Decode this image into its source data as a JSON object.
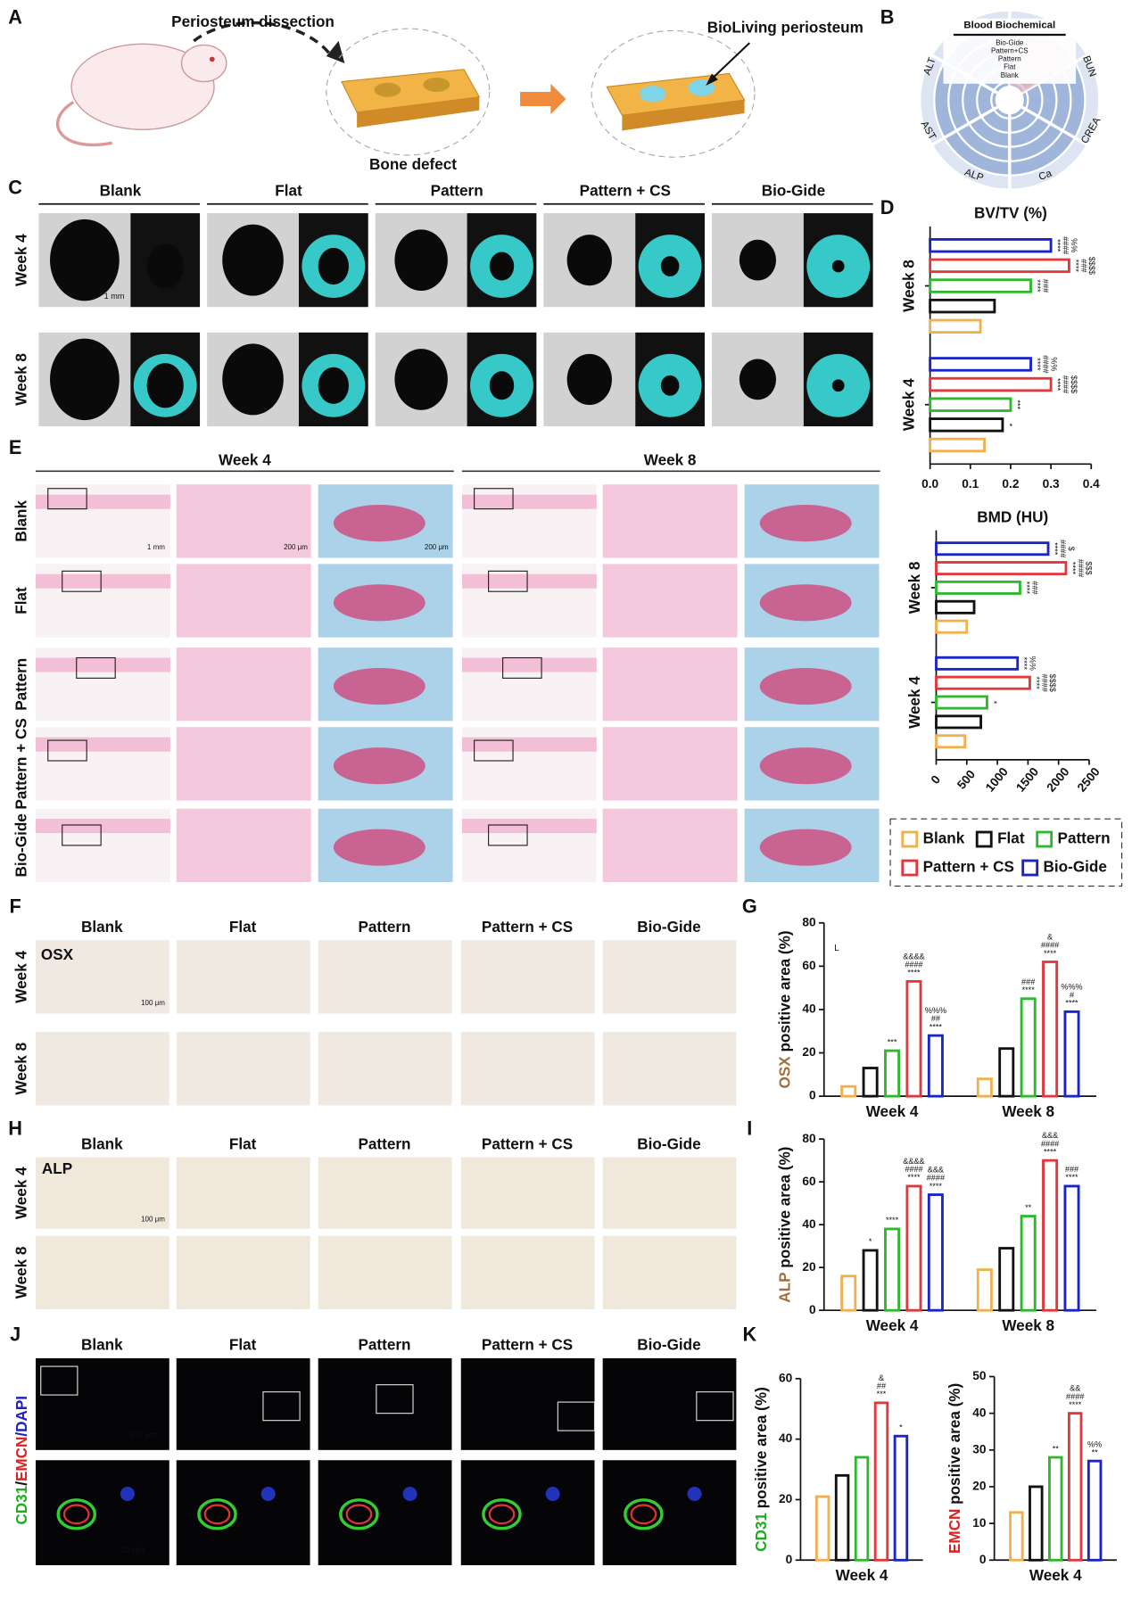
{
  "panels": {
    "letters": [
      "A",
      "B",
      "C",
      "D",
      "E",
      "F",
      "G",
      "H",
      "I",
      "J",
      "K"
    ],
    "A": {
      "step1": "Periosteum dissection",
      "step2": "Bone defect",
      "step3": "BioLiving periosteum"
    },
    "B": {
      "title": "Blood Biochemical",
      "levels": [
        "Bio-Gide",
        "Pattern+CS",
        "Pattern",
        "Flat",
        "Blank"
      ],
      "sectors": [
        "ALT",
        "BUN",
        "CREA",
        "Ca",
        "ALP",
        "AST"
      ]
    },
    "C": {
      "groups": [
        "Blank",
        "Flat",
        "Pattern",
        "Pattern + CS",
        "Bio-Gide"
      ],
      "rows": [
        "Week 4",
        "Week 8"
      ],
      "scale": "1 mm"
    },
    "E": {
      "weeks": [
        "Week 4",
        "Week 8"
      ],
      "rows": [
        "Blank",
        "Flat",
        "Pattern",
        "Pattern + CS",
        "Bio-Gide"
      ],
      "scales": [
        "1 mm",
        "200 μm",
        "200 μm"
      ]
    },
    "F": {
      "groups": [
        "Blank",
        "Flat",
        "Pattern",
        "Pattern + CS",
        "Bio-Gide"
      ],
      "rows": [
        "Week 4",
        "Week 8"
      ],
      "stain": "OSX",
      "scale": "100 μm"
    },
    "H": {
      "groups": [
        "Blank",
        "Flat",
        "Pattern",
        "Pattern + CS",
        "Bio-Gide"
      ],
      "rows": [
        "Week 4",
        "Week 8"
      ],
      "stain": "ALP",
      "scale": "100 μm"
    },
    "J": {
      "groups": [
        "Blank",
        "Flat",
        "Pattern",
        "Pattern + CS",
        "Bio-Gide"
      ],
      "stain_parts": [
        "CD31",
        "/",
        "EMCN",
        "/DAPI"
      ],
      "scales": [
        "100 μm",
        "25 μm"
      ]
    }
  },
  "chart_data": [
    {
      "type": "hbar",
      "title": "BV/TV (%)",
      "categories": [
        "Week 4",
        "Week 8"
      ],
      "xlim": [
        0,
        0.4
      ],
      "xticks": [
        {
          "value": 0,
          "label": "0.0"
        },
        0.1,
        0.2,
        0.3,
        0.4
      ],
      "series": [
        {
          "name": "Blank",
          "color": "#f0b050",
          "values": [
            0.135,
            0.125
          ],
          "annotations": [
            [],
            []
          ]
        },
        {
          "name": "Flat",
          "color": "#111111",
          "values": [
            0.18,
            0.16
          ],
          "annotations": [
            [
              "*"
            ],
            []
          ]
        },
        {
          "name": "Pattern",
          "color": "#2eb82e",
          "values": [
            0.2,
            0.25
          ],
          "annotations": [
            [
              "***"
            ],
            [
              "****",
              "###"
            ]
          ]
        },
        {
          "name": "Pattern + CS",
          "color": "#e0383c",
          "values": [
            0.3,
            0.345
          ],
          "annotations": [
            [
              "****",
              "####",
              "$$$$"
            ],
            [
              "****",
              "###",
              "$$$$"
            ]
          ]
        },
        {
          "name": "Bio-Gide",
          "color": "#1a24c8",
          "values": [
            0.25,
            0.3
          ],
          "annotations": [
            [
              "****",
              "####",
              "%%"
            ],
            [
              "****",
              "####",
              "%%"
            ]
          ]
        }
      ]
    },
    {
      "type": "hbar",
      "title": "BMD (HU)",
      "categories": [
        "Week 4",
        "Week 8"
      ],
      "xlim": [
        0,
        2500
      ],
      "xticks": [
        0,
        500,
        1000,
        1500,
        2000,
        2500
      ],
      "legend": "bottom",
      "series": [
        {
          "name": "Blank",
          "color": "#f0b050",
          "values": [
            470,
            500
          ],
          "annotations": [
            [],
            []
          ]
        },
        {
          "name": "Flat",
          "color": "#111111",
          "values": [
            730,
            620
          ],
          "annotations": [
            [],
            []
          ]
        },
        {
          "name": "Pattern",
          "color": "#2eb82e",
          "values": [
            830,
            1370
          ],
          "annotations": [
            [
              "*"
            ],
            [
              "****",
              "###"
            ]
          ]
        },
        {
          "name": "Pattern + CS",
          "color": "#e0383c",
          "values": [
            1530,
            2120
          ],
          "annotations": [
            [
              "****",
              "####",
              "$$$$"
            ],
            [
              "****",
              "####",
              "$$$"
            ]
          ]
        },
        {
          "name": "Bio-Gide",
          "color": "#1a24c8",
          "values": [
            1330,
            1830
          ],
          "annotations": [
            [
              "****",
              "%%"
            ],
            [
              "****",
              "####",
              "$"
            ]
          ]
        }
      ]
    },
    {
      "type": "bar",
      "ylabel_prefix": "OSX",
      "ylabel": "positive area (%)",
      "note": "L",
      "categories": [
        "Week 4",
        "Week 8"
      ],
      "ylim": [
        0,
        80
      ],
      "yticks": [
        0,
        20,
        40,
        60,
        80
      ],
      "series": [
        {
          "name": "Blank",
          "color": "#f0b050",
          "values": [
            4.5,
            8
          ],
          "annotations": [
            [],
            []
          ]
        },
        {
          "name": "Flat",
          "color": "#111111",
          "values": [
            13,
            22
          ],
          "annotations": [
            [],
            []
          ]
        },
        {
          "name": "Pattern",
          "color": "#2eb82e",
          "values": [
            21,
            45
          ],
          "annotations": [
            [
              "***"
            ],
            [
              "###",
              "****"
            ]
          ]
        },
        {
          "name": "Pattern + CS",
          "color": "#e0383c",
          "values": [
            53,
            62
          ],
          "annotations": [
            [
              "&&&&",
              "####",
              "****"
            ],
            [
              "&",
              "####",
              "****"
            ]
          ]
        },
        {
          "name": "Bio-Gide",
          "color": "#1a24c8",
          "values": [
            28,
            39
          ],
          "annotations": [
            [
              "%%%",
              "##",
              "****"
            ],
            [
              "%%%",
              "#",
              "****"
            ]
          ]
        }
      ]
    },
    {
      "type": "bar",
      "ylabel_prefix": "ALP",
      "ylabel": "positive area (%)",
      "categories": [
        "Week 4",
        "Week 8"
      ],
      "ylim": [
        0,
        80
      ],
      "yticks": [
        0,
        20,
        40,
        60,
        80
      ],
      "series": [
        {
          "name": "Blank",
          "color": "#f0b050",
          "values": [
            16,
            19
          ],
          "annotations": [
            [],
            []
          ]
        },
        {
          "name": "Flat",
          "color": "#111111",
          "values": [
            28,
            29
          ],
          "annotations": [
            [
              "*"
            ],
            []
          ]
        },
        {
          "name": "Pattern",
          "color": "#2eb82e",
          "values": [
            38,
            44
          ],
          "annotations": [
            [
              "****"
            ],
            [
              "**"
            ]
          ]
        },
        {
          "name": "Pattern + CS",
          "color": "#e0383c",
          "values": [
            58,
            70
          ],
          "annotations": [
            [
              "&&&&",
              "####",
              "****"
            ],
            [
              "&&&",
              "####",
              "****"
            ]
          ]
        },
        {
          "name": "Bio-Gide",
          "color": "#1a24c8",
          "values": [
            54,
            58
          ],
          "annotations": [
            [
              "&&&",
              "####",
              "****"
            ],
            [
              "###",
              "****"
            ]
          ]
        }
      ]
    },
    {
      "type": "bar",
      "ylabel_prefix": "CD31",
      "ylabel": "positive area (%)",
      "categories": [
        "Week 4"
      ],
      "ylim": [
        0,
        60
      ],
      "yticks": [
        0,
        20,
        40,
        60
      ],
      "series": [
        {
          "name": "Blank",
          "color": "#f0b050",
          "values": [
            21
          ],
          "annotations": [
            []
          ]
        },
        {
          "name": "Flat",
          "color": "#111111",
          "values": [
            28
          ],
          "annotations": [
            []
          ]
        },
        {
          "name": "Pattern",
          "color": "#2eb82e",
          "values": [
            34
          ],
          "annotations": [
            []
          ]
        },
        {
          "name": "Pattern + CS",
          "color": "#e0383c",
          "values": [
            52
          ],
          "annotations": [
            [
              "&",
              "##",
              "***"
            ]
          ]
        },
        {
          "name": "Bio-Gide",
          "color": "#1a24c8",
          "values": [
            41
          ],
          "annotations": [
            [
              "*"
            ]
          ]
        }
      ]
    },
    {
      "type": "bar",
      "ylabel_prefix": "EMCN",
      "ylabel": "positive area (%)",
      "categories": [
        "Week 4"
      ],
      "ylim": [
        0,
        50
      ],
      "yticks": [
        0,
        10,
        20,
        30,
        40,
        50
      ],
      "series": [
        {
          "name": "Blank",
          "color": "#f0b050",
          "values": [
            13
          ],
          "annotations": [
            []
          ]
        },
        {
          "name": "Flat",
          "color": "#111111",
          "values": [
            20
          ],
          "annotations": [
            []
          ]
        },
        {
          "name": "Pattern",
          "color": "#2eb82e",
          "values": [
            28
          ],
          "annotations": [
            [
              "**"
            ]
          ]
        },
        {
          "name": "Pattern + CS",
          "color": "#e0383c",
          "values": [
            40
          ],
          "annotations": [
            [
              "&&",
              "####",
              "****"
            ]
          ]
        },
        {
          "name": "Bio-Gide",
          "color": "#1a24c8",
          "values": [
            27
          ],
          "annotations": [
            [
              "%%",
              "**"
            ]
          ]
        }
      ]
    }
  ]
}
